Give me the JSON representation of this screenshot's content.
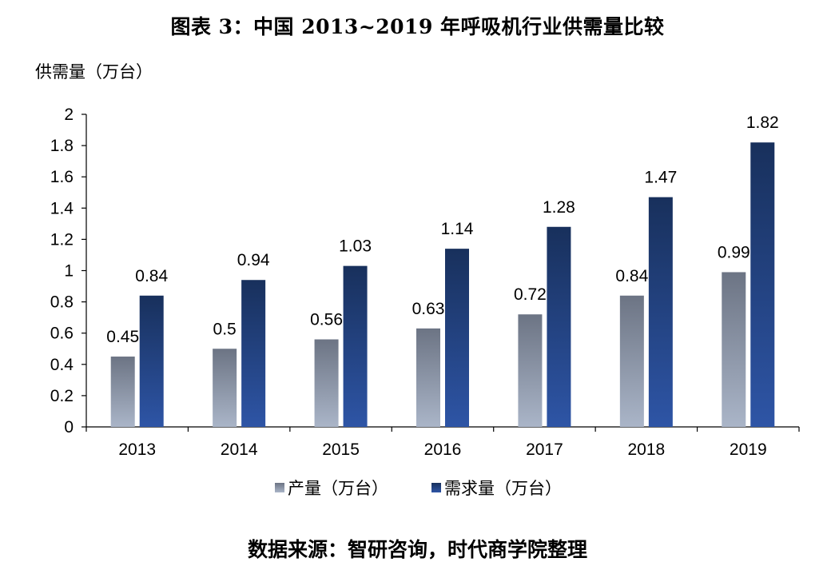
{
  "header": {
    "title": "图表 3：中国 2013~2019 年呼吸机行业供需量比较"
  },
  "footer": {
    "source": "数据来源：智研咨询，时代商学院整理"
  },
  "chart_data": {
    "type": "bar",
    "title": "图表 3：中国 2013~2019 年呼吸机行业供需量比较",
    "ylabel": "供需量（万台）",
    "xlabel": "",
    "categories": [
      "2013",
      "2014",
      "2015",
      "2016",
      "2017",
      "2018",
      "2019"
    ],
    "ylim": [
      0,
      2
    ],
    "yticks": [
      "0",
      "0.2",
      "0.4",
      "0.6",
      "0.8",
      "1",
      "1.2",
      "1.4",
      "1.6",
      "1.8",
      "2"
    ],
    "grid": false,
    "legend_position": "bottom",
    "series": [
      {
        "name": "产量（万台）",
        "values": [
          0.45,
          0.5,
          0.56,
          0.63,
          0.72,
          0.84,
          0.99
        ],
        "labels": [
          "0.45",
          "0.5",
          "0.56",
          "0.63",
          "0.72",
          "0.84",
          "0.99"
        ],
        "color_top": "#6c7484",
        "color_bottom": "#aab5c8"
      },
      {
        "name": "需求量（万台）",
        "values": [
          0.84,
          0.94,
          1.03,
          1.14,
          1.28,
          1.47,
          1.82
        ],
        "labels": [
          "0.84",
          "0.94",
          "1.03",
          "1.14",
          "1.28",
          "1.47",
          "1.82"
        ],
        "color_top": "#18305c",
        "color_bottom": "#2e55a6"
      }
    ]
  }
}
